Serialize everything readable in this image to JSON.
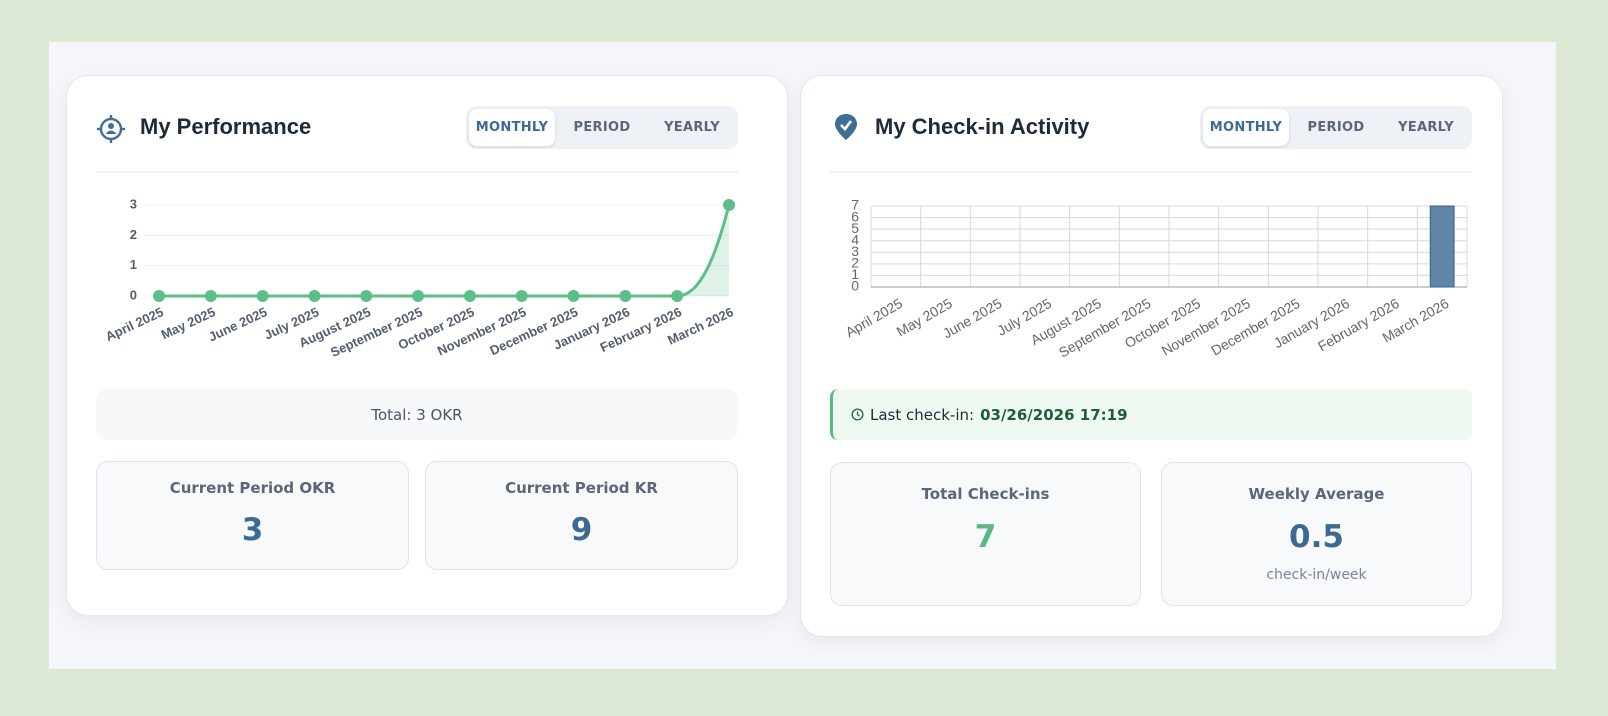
{
  "panels": [
    {
      "title": "My Performance",
      "tabs": [
        "MONTHLY",
        "PERIOD",
        "YEARLY"
      ],
      "total": "Total: 3 OKR",
      "stats": [
        {
          "label": "Current Period OKR",
          "value": 3
        },
        {
          "label": "Current Period KR",
          "value": 9
        }
      ]
    },
    {
      "title": "My Check-in Activity",
      "tabs": [
        "MONTHLY",
        "PERIOD",
        "YEARLY"
      ],
      "last_checkin_label": "Last check-in:",
      "last_checkin": "03/26/2026 17:19",
      "stats": [
        {
          "label": "Total Check-ins",
          "value": 7
        },
        {
          "label": "Weekly Average",
          "value": 0.5,
          "unit": "check-in/week"
        }
      ]
    }
  ],
  "chart_data": [
    {
      "type": "line",
      "categories": [
        "April 2025",
        "May 2025",
        "June 2025",
        "July 2025",
        "August 2025",
        "September 2025",
        "October 2025",
        "November 2025",
        "December 2025",
        "January 2026",
        "February 2026",
        "March 2026"
      ],
      "values": [
        0,
        0,
        0,
        0,
        0,
        0,
        0,
        0,
        0,
        0,
        0,
        3
      ],
      "color": "#5cbf8a",
      "ylim": [
        0,
        3
      ],
      "yticks": [
        0,
        1,
        2,
        3
      ],
      "grid": true
    },
    {
      "type": "bar",
      "categories": [
        "April 2025",
        "May 2025",
        "June 2025",
        "July 2025",
        "August 2025",
        "September 2025",
        "October 2025",
        "November 2025",
        "December 2025",
        "January 2026",
        "February 2026",
        "March 2026"
      ],
      "values": [
        0,
        0,
        0,
        0,
        0,
        0,
        0,
        0,
        0,
        0,
        0,
        7
      ],
      "color": "#5f86a8",
      "ylim": [
        0,
        7
      ],
      "yticks": [
        0,
        1,
        2,
        3,
        4,
        5,
        6,
        7
      ],
      "grid": true
    }
  ]
}
